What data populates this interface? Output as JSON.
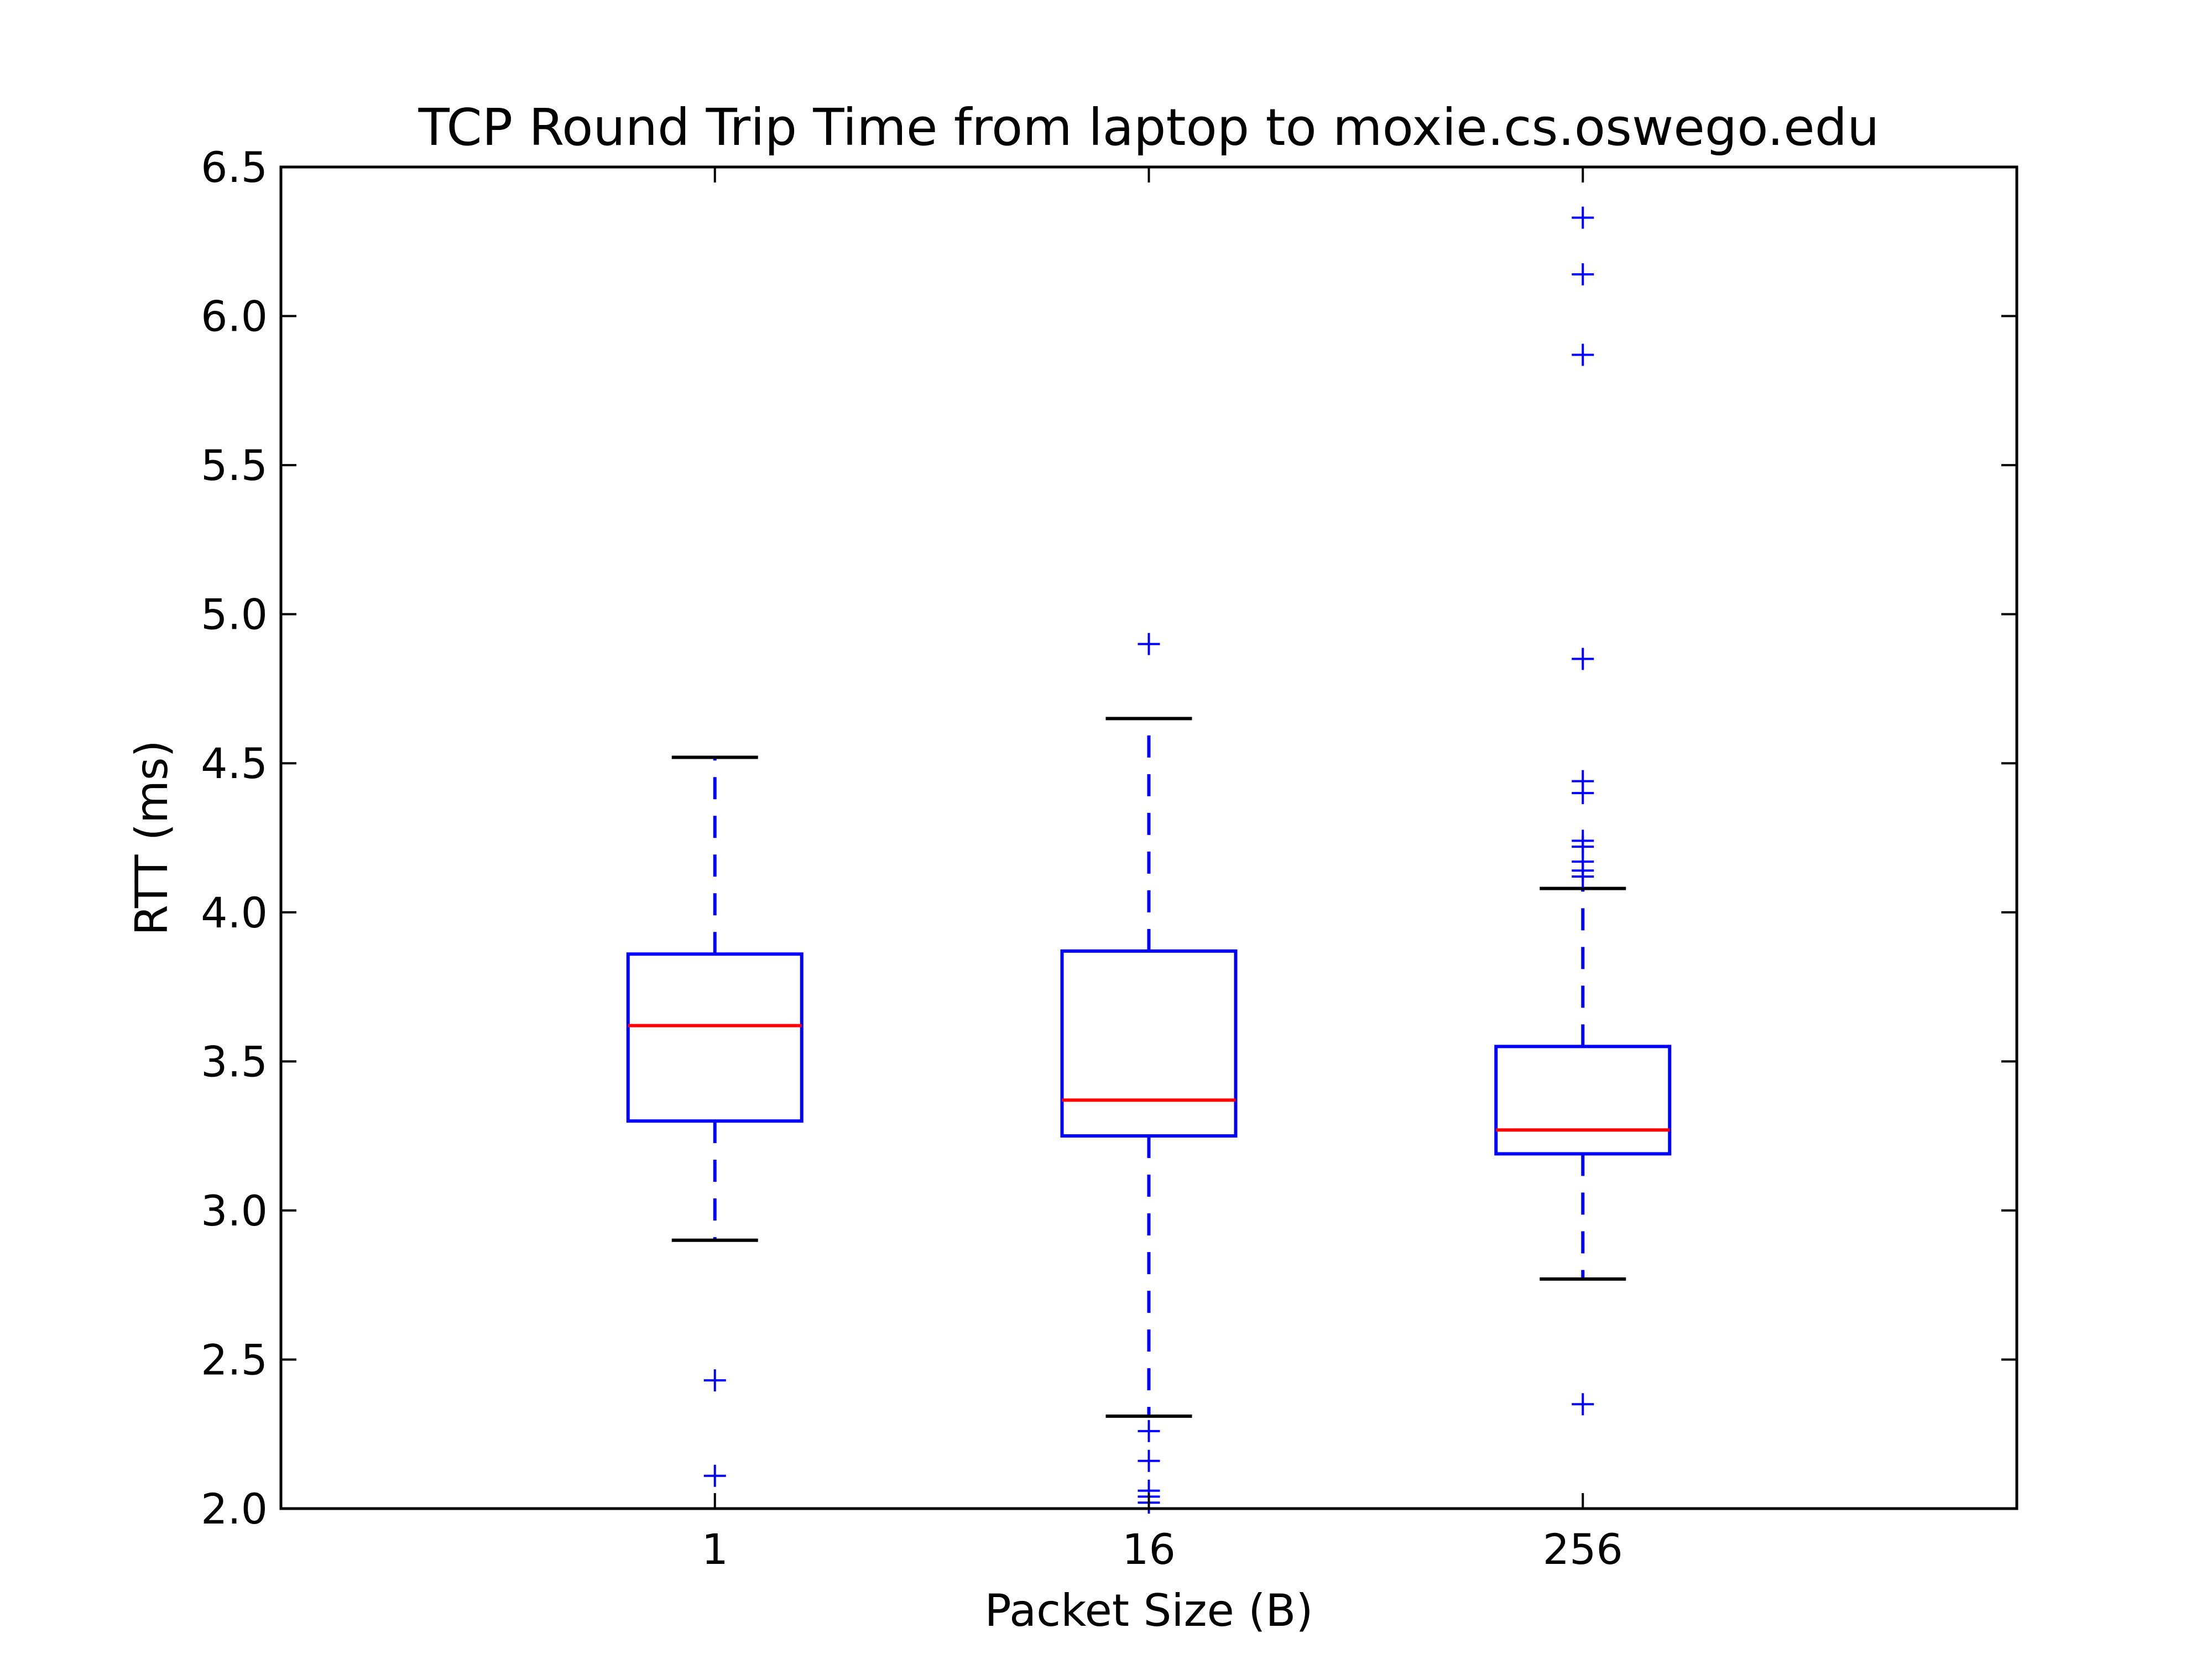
{
  "chart_data": {
    "type": "box",
    "title": "TCP Round Trip Time from laptop to moxie.cs.oswego.edu",
    "xlabel": "Packet Size (B)",
    "ylabel": "RTT (ms)",
    "ylim": [
      2.0,
      6.5
    ],
    "yticks": [
      "2.0",
      "2.5",
      "3.0",
      "3.5",
      "4.0",
      "4.5",
      "5.0",
      "5.5",
      "6.0",
      "6.5"
    ],
    "categories": [
      "1",
      "16",
      "256"
    ],
    "grid": false,
    "boxes": [
      {
        "category": "1",
        "whisker_low": 2.9,
        "q1": 3.3,
        "median": 3.62,
        "q3": 3.86,
        "whisker_high": 4.52,
        "outliers": [
          2.43,
          2.11
        ]
      },
      {
        "category": "16",
        "whisker_low": 2.31,
        "q1": 3.25,
        "median": 3.37,
        "q3": 3.87,
        "whisker_high": 4.65,
        "outliers": [
          4.9,
          2.26,
          2.16,
          2.06,
          2.04,
          2.02
        ]
      },
      {
        "category": "256",
        "whisker_low": 2.77,
        "q1": 3.19,
        "median": 3.27,
        "q3": 3.55,
        "whisker_high": 4.08,
        "outliers": [
          6.33,
          6.14,
          5.87,
          4.85,
          4.44,
          4.4,
          4.24,
          4.22,
          4.17,
          4.14,
          4.12,
          2.35
        ]
      }
    ],
    "colors": {
      "box": "#0000ff",
      "median": "#ff0000",
      "caps": "#000000",
      "whiskers": "#0000ff",
      "outliers": "#0000ff"
    }
  }
}
